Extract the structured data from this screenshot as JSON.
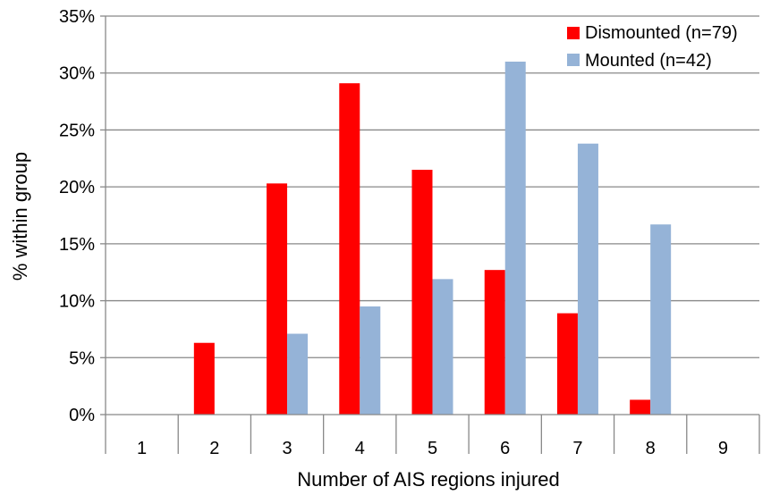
{
  "chart_data": {
    "type": "bar",
    "title": "",
    "xlabel": "Number of AIS regions injured",
    "ylabel": "% within group",
    "categories": [
      "1",
      "2",
      "3",
      "4",
      "5",
      "6",
      "7",
      "8",
      "9"
    ],
    "ylim": [
      0,
      35
    ],
    "yticks": [
      0,
      5,
      10,
      15,
      20,
      25,
      30,
      35
    ],
    "ytick_labels": [
      "0%",
      "5%",
      "10%",
      "15%",
      "20%",
      "25%",
      "30%",
      "35%"
    ],
    "grid": "horizontal",
    "legend_position": "top-right",
    "series": [
      {
        "name": "Dismounted (n=79)",
        "color": "#ff0000",
        "values": [
          0,
          6.3,
          20.3,
          29.1,
          21.5,
          12.7,
          8.9,
          1.3,
          0
        ]
      },
      {
        "name": "Mounted (n=42)",
        "color": "#95b3d7",
        "values": [
          0,
          0,
          7.1,
          9.5,
          11.9,
          31.0,
          23.8,
          16.7,
          0
        ]
      }
    ]
  }
}
